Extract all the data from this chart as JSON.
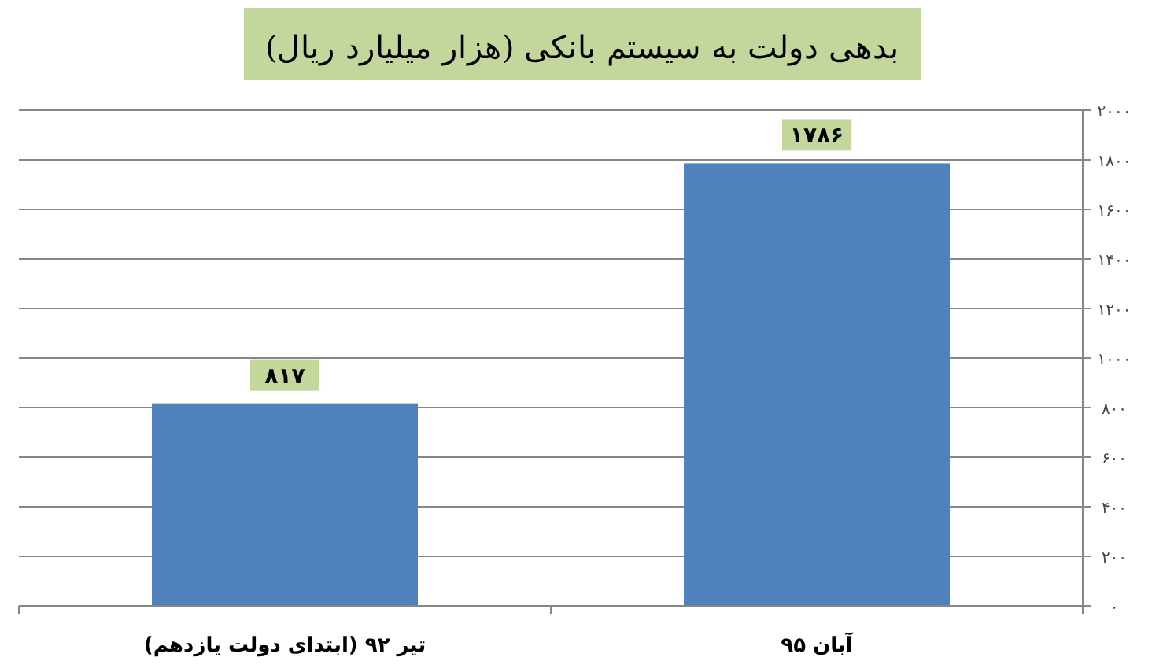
{
  "chart_data": {
    "type": "bar",
    "title": "بدهی دولت به سیستم بانکی (هزار میلیارد ریال)",
    "categories": [
      "تیر ۹۲ (ابتدای دولت یازدهم)",
      "آبان ۹۵"
    ],
    "values": [
      817,
      1786
    ],
    "value_labels": [
      "۸۱۷",
      "۱۷۸۶"
    ],
    "color": "#4f81bd",
    "ylim": [
      0,
      2000
    ],
    "yticks": [
      {
        "value": 0,
        "label": "۰"
      },
      {
        "value": 200,
        "label": "۲۰۰"
      },
      {
        "value": 400,
        "label": "۴۰۰"
      },
      {
        "value": 600,
        "label": "۶۰۰"
      },
      {
        "value": 800,
        "label": "۸۰۰"
      },
      {
        "value": 1000,
        "label": "۱۰۰۰"
      },
      {
        "value": 1200,
        "label": "۱۲۰۰"
      },
      {
        "value": 1400,
        "label": "۱۴۰۰"
      },
      {
        "value": 1600,
        "label": "۱۶۰۰"
      },
      {
        "value": 1800,
        "label": "۱۸۰۰"
      },
      {
        "value": 2000,
        "label": "۲۰۰۰"
      }
    ],
    "grid": "y"
  }
}
